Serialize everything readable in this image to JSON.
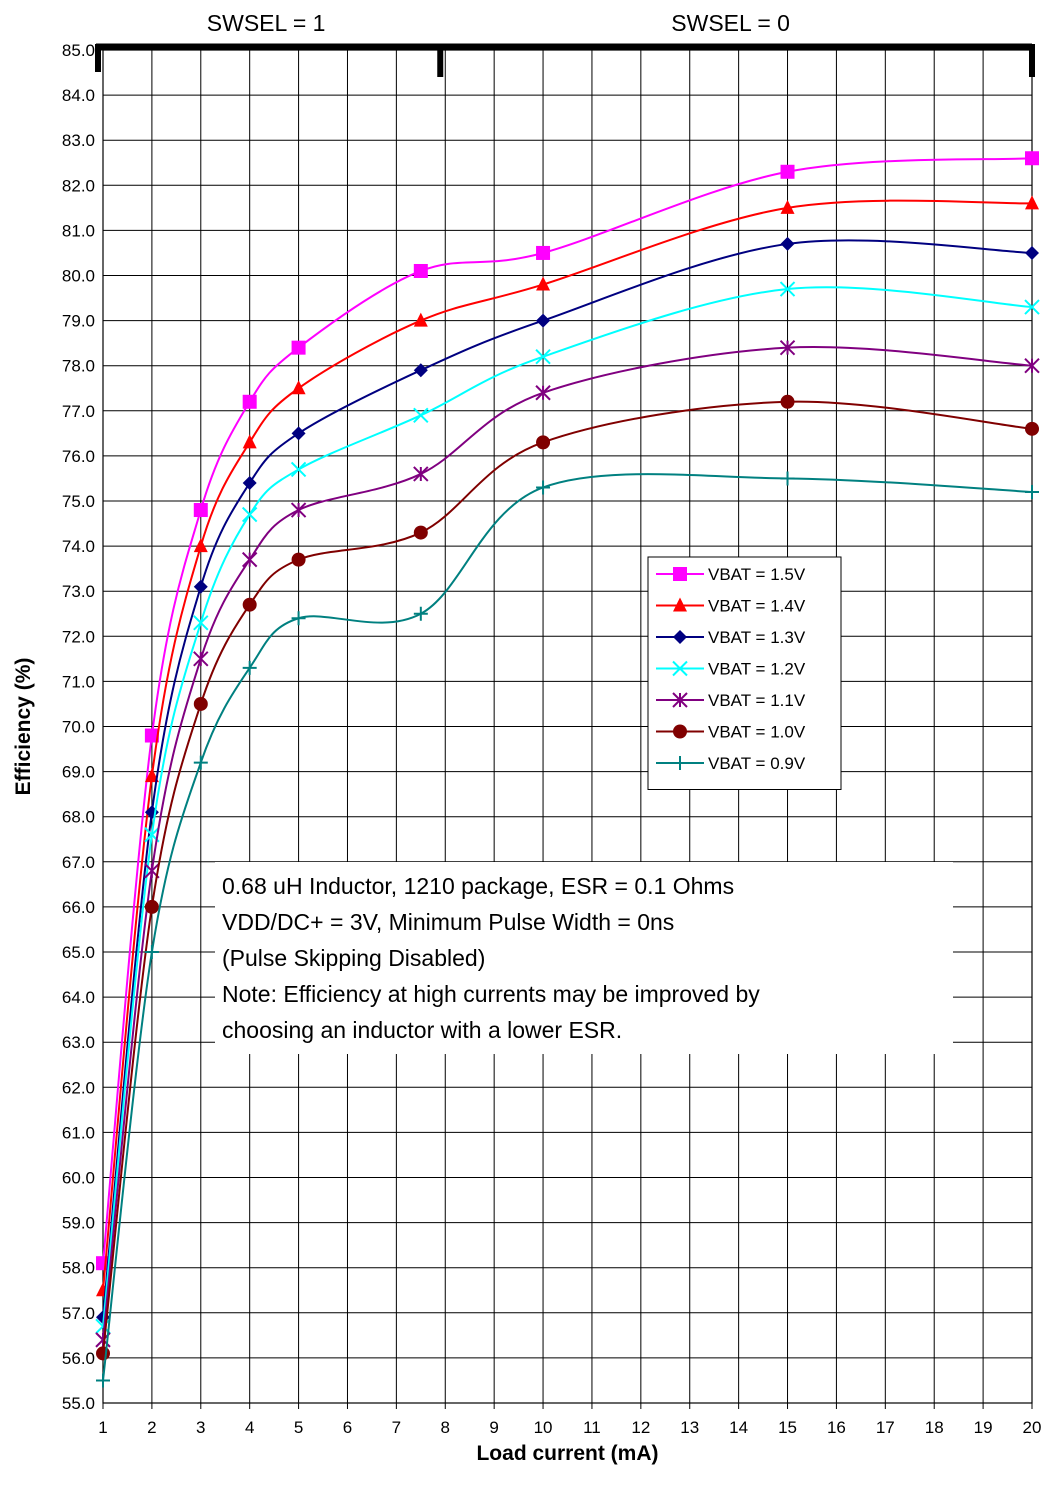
{
  "chart_data": {
    "type": "line",
    "xlabel": "Load current (mA)",
    "ylabel": "Efficiency (%)",
    "ylim": [
      55.0,
      85.0
    ],
    "y_step": 1.0,
    "x_ticks": [
      1,
      2,
      3,
      4,
      5,
      6,
      7,
      8,
      9,
      10,
      11,
      12,
      13,
      14,
      15,
      16,
      17,
      18,
      19,
      20
    ],
    "grid": true,
    "legend_position": "middle-right",
    "regions": [
      {
        "label": "SWSEL = 1",
        "from": 1,
        "to": 8
      },
      {
        "label": "SWSEL = 0",
        "from": 8,
        "to": 20
      }
    ],
    "annotation_lines": [
      "0.68 uH Inductor, 1210 package, ESR = 0.1 Ohms",
      "VDD/DC+ = 3V, Minimum Pulse Width = 0ns",
      "(Pulse Skipping Disabled)",
      "Note: Efficiency at high currents may be improved by",
      "choosing an inductor with a lower ESR."
    ],
    "x": [
      1,
      2,
      3,
      4,
      5,
      7.5,
      10,
      15,
      20
    ],
    "series": [
      {
        "name": "VBAT = 1.5V",
        "color": "#FF00FF",
        "marker": "square",
        "values": [
          58.1,
          69.8,
          74.8,
          77.2,
          78.4,
          80.1,
          80.5,
          82.3,
          82.6
        ]
      },
      {
        "name": "VBAT = 1.4V",
        "color": "#FF0000",
        "marker": "triangle",
        "values": [
          57.5,
          68.9,
          74.0,
          76.3,
          77.5,
          79.0,
          79.8,
          81.5,
          81.6
        ]
      },
      {
        "name": "VBAT = 1.3V",
        "color": "#000080",
        "marker": "diamond",
        "values": [
          56.9,
          68.1,
          73.1,
          75.4,
          76.5,
          77.9,
          79.0,
          80.7,
          80.5
        ]
      },
      {
        "name": "VBAT = 1.2V",
        "color": "#00FFFF",
        "marker": "x",
        "values": [
          56.7,
          67.6,
          72.3,
          74.7,
          75.7,
          76.9,
          78.2,
          79.7,
          79.3
        ]
      },
      {
        "name": "VBAT = 1.1V",
        "color": "#800080",
        "marker": "star",
        "values": [
          56.4,
          66.8,
          71.5,
          73.7,
          74.8,
          75.6,
          77.4,
          78.4,
          78.0
        ]
      },
      {
        "name": "VBAT = 1.0V",
        "color": "#800000",
        "marker": "circle",
        "values": [
          56.1,
          66.0,
          70.5,
          72.7,
          73.7,
          74.3,
          76.3,
          77.2,
          76.6
        ]
      },
      {
        "name": "VBAT = 0.9V",
        "color": "#008080",
        "marker": "plus",
        "values": [
          55.5,
          65.0,
          69.2,
          71.3,
          72.4,
          72.5,
          75.3,
          75.5,
          75.2
        ]
      }
    ]
  }
}
